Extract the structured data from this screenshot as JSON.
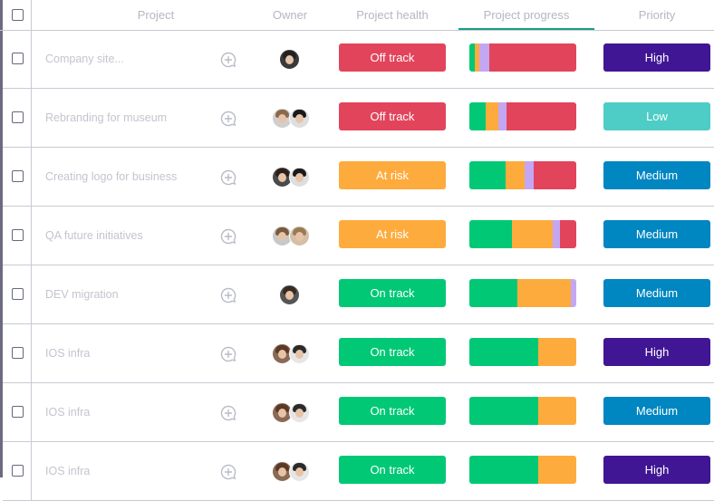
{
  "header": {
    "project": "Project",
    "owner": "Owner",
    "health": "Project health",
    "progress": "Project progress",
    "priority": "Priority"
  },
  "colors": {
    "off_track": "#e2445c",
    "at_risk": "#fdab3d",
    "on_track": "#00c875",
    "lavender": "#c4a7f2",
    "high": "#401694",
    "medium": "#0086c0",
    "low": "#4eccc6"
  },
  "rows": [
    {
      "name": "Company site...",
      "health": "Off track",
      "health_color": "#e2445c",
      "progress": [
        {
          "c": "#00c875",
          "w": 0.05
        },
        {
          "c": "#fdab3d",
          "w": 0.04
        },
        {
          "c": "#c4a7f2",
          "w": 0.1
        },
        {
          "c": "#e2445c",
          "w": 0.81
        }
      ],
      "priority": "High",
      "priority_color": "#401694",
      "owners": [
        {
          "hair": "#222",
          "bg": "#3a3a3a"
        }
      ]
    },
    {
      "name": "Rebranding for museum",
      "health": "Off track",
      "health_color": "#e2445c",
      "progress": [
        {
          "c": "#00c875",
          "w": 0.15
        },
        {
          "c": "#fdab3d",
          "w": 0.12
        },
        {
          "c": "#c4a7f2",
          "w": 0.08
        },
        {
          "c": "#e2445c",
          "w": 0.65
        }
      ],
      "priority": "Low",
      "priority_color": "#4eccc6",
      "owners": [
        {
          "hair": "#8a6a4a",
          "bg": "#cfcfcf"
        },
        {
          "hair": "#1a1a1a",
          "bg": "#dedede"
        }
      ]
    },
    {
      "name": "Creating logo for business",
      "health": "At risk",
      "health_color": "#fdab3d",
      "progress": [
        {
          "c": "#00c875",
          "w": 0.34
        },
        {
          "c": "#fdab3d",
          "w": 0.18
        },
        {
          "c": "#c4a7f2",
          "w": 0.08
        },
        {
          "c": "#e2445c",
          "w": 0.4
        }
      ],
      "priority": "Medium",
      "priority_color": "#0086c0",
      "owners": [
        {
          "hair": "#2b1f1a",
          "bg": "#4a4a4a"
        },
        {
          "hair": "#1a1a1a",
          "bg": "#dedede"
        }
      ]
    },
    {
      "name": "QA future initiatives",
      "health": "At risk",
      "health_color": "#fdab3d",
      "progress": [
        {
          "c": "#00c875",
          "w": 0.4
        },
        {
          "c": "#fdab3d",
          "w": 0.38
        },
        {
          "c": "#c4a7f2",
          "w": 0.07
        },
        {
          "c": "#e2445c",
          "w": 0.15
        }
      ],
      "priority": "Medium",
      "priority_color": "#0086c0",
      "owners": [
        {
          "hair": "#7a5a3a",
          "bg": "#c8c8c8"
        },
        {
          "hair": "#9a7a55",
          "bg": "#d4c0a8"
        }
      ]
    },
    {
      "name": "DEV migration",
      "health": "On track",
      "health_color": "#00c875",
      "progress": [
        {
          "c": "#00c875",
          "w": 0.45
        },
        {
          "c": "#fdab3d",
          "w": 0.5
        },
        {
          "c": "#c4a7f2",
          "w": 0.05
        }
      ],
      "priority": "Medium",
      "priority_color": "#0086c0",
      "owners": [
        {
          "hair": "#3a2a20",
          "bg": "#555"
        }
      ]
    },
    {
      "name": "IOS infra",
      "health": "On track",
      "health_color": "#00c875",
      "progress": [
        {
          "c": "#00c875",
          "w": 0.64
        },
        {
          "c": "#fdab3d",
          "w": 0.36
        }
      ],
      "priority": "High",
      "priority_color": "#401694",
      "owners": [
        {
          "hair": "#5a3a25",
          "bg": "#8a6a55"
        },
        {
          "hair": "#2a2a2a",
          "bg": "#e6e6e6"
        }
      ]
    },
    {
      "name": "IOS infra",
      "health": "On track",
      "health_color": "#00c875",
      "progress": [
        {
          "c": "#00c875",
          "w": 0.64
        },
        {
          "c": "#fdab3d",
          "w": 0.36
        }
      ],
      "priority": "Medium",
      "priority_color": "#0086c0",
      "owners": [
        {
          "hair": "#5a3a25",
          "bg": "#8a6a55"
        },
        {
          "hair": "#2a2a2a",
          "bg": "#e6e6e6"
        }
      ]
    },
    {
      "name": "IOS infra",
      "health": "On track",
      "health_color": "#00c875",
      "progress": [
        {
          "c": "#00c875",
          "w": 0.64
        },
        {
          "c": "#fdab3d",
          "w": 0.36
        }
      ],
      "priority": "High",
      "priority_color": "#401694",
      "owners": [
        {
          "hair": "#5a3a25",
          "bg": "#8a6a55"
        },
        {
          "hair": "#2a2a2a",
          "bg": "#e6e6e6"
        }
      ]
    }
  ]
}
